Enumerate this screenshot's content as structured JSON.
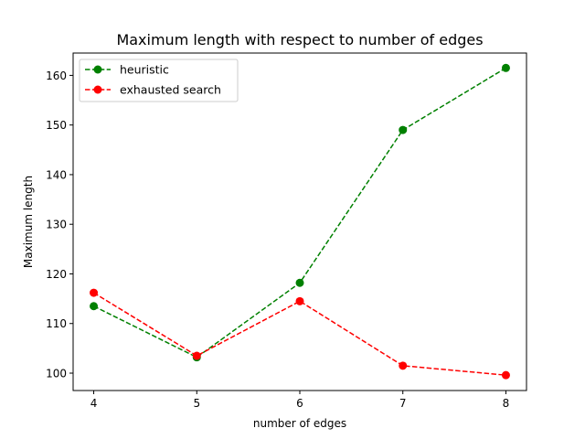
{
  "chart_data": {
    "type": "line",
    "title": "Maximum length with respect to number of edges",
    "xlabel": "number of edges",
    "ylabel": "Maximum length",
    "x": [
      4,
      5,
      6,
      7,
      8
    ],
    "xticks": [
      "4",
      "5",
      "6",
      "7",
      "8"
    ],
    "xlim": [
      3.8,
      8.2
    ],
    "yticks": [
      "100",
      "110",
      "120",
      "130",
      "140",
      "150",
      "160"
    ],
    "ylim": [
      96.5,
      164.5
    ],
    "grid": false,
    "legend_position": "upper-left",
    "series": [
      {
        "name": "heuristic",
        "color": "#008000",
        "values": [
          113.5,
          103.2,
          118.2,
          149.0,
          161.5
        ]
      },
      {
        "name": "exhausted search",
        "color": "#ff0000",
        "values": [
          116.2,
          103.5,
          114.5,
          101.5,
          99.6
        ]
      }
    ]
  }
}
